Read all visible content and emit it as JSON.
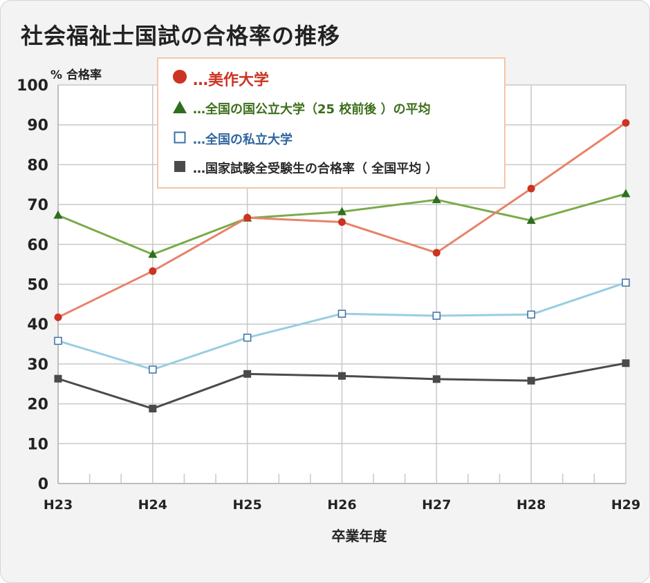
{
  "chart_data": {
    "type": "line",
    "title": "社会福祉士国試の合格率の推移",
    "ylabel": "% 合格率",
    "xlabel": "卒業年度",
    "categories": [
      "H23",
      "H24",
      "H25",
      "H26",
      "H27",
      "H28",
      "H29"
    ],
    "ylim": [
      0,
      100
    ],
    "yticks": [
      0,
      10,
      20,
      30,
      40,
      50,
      60,
      70,
      80,
      90,
      100
    ],
    "grid": true,
    "legend_position": "top-center",
    "series": [
      {
        "key": "mimasaka",
        "name": "…美作大学",
        "color": "#e8826a",
        "marker_color": "#cc3322",
        "text_color": "#cc3322",
        "marker": "circle",
        "values": [
          41.7,
          53.3,
          66.7,
          65.6,
          57.9,
          74.0,
          90.5
        ]
      },
      {
        "key": "public",
        "name": "…全国の国公立大学（25 校前後 ）の平均",
        "color": "#7aab4a",
        "marker_color": "#2f6e1e",
        "text_color": "#3c6e1a",
        "marker": "triangle",
        "values": [
          67.3,
          57.5,
          66.6,
          68.2,
          71.2,
          66.0,
          72.7
        ]
      },
      {
        "key": "private",
        "name": "…全国の私立大学",
        "color": "#99cde2",
        "marker_color": "#3a6fa6",
        "text_color": "#2f65a0",
        "marker": "square-open",
        "values": [
          35.8,
          28.6,
          36.6,
          42.6,
          42.1,
          42.4,
          50.4
        ]
      },
      {
        "key": "national",
        "name": "…国家試験全受験生の合格率（ 全国平均 ）",
        "color": "#4a4a4a",
        "marker_color": "#4a4a4a",
        "text_color": "#2a2a2a",
        "marker": "square-filled",
        "values": [
          26.3,
          18.8,
          27.5,
          27.0,
          26.2,
          25.8,
          30.2
        ]
      }
    ]
  }
}
